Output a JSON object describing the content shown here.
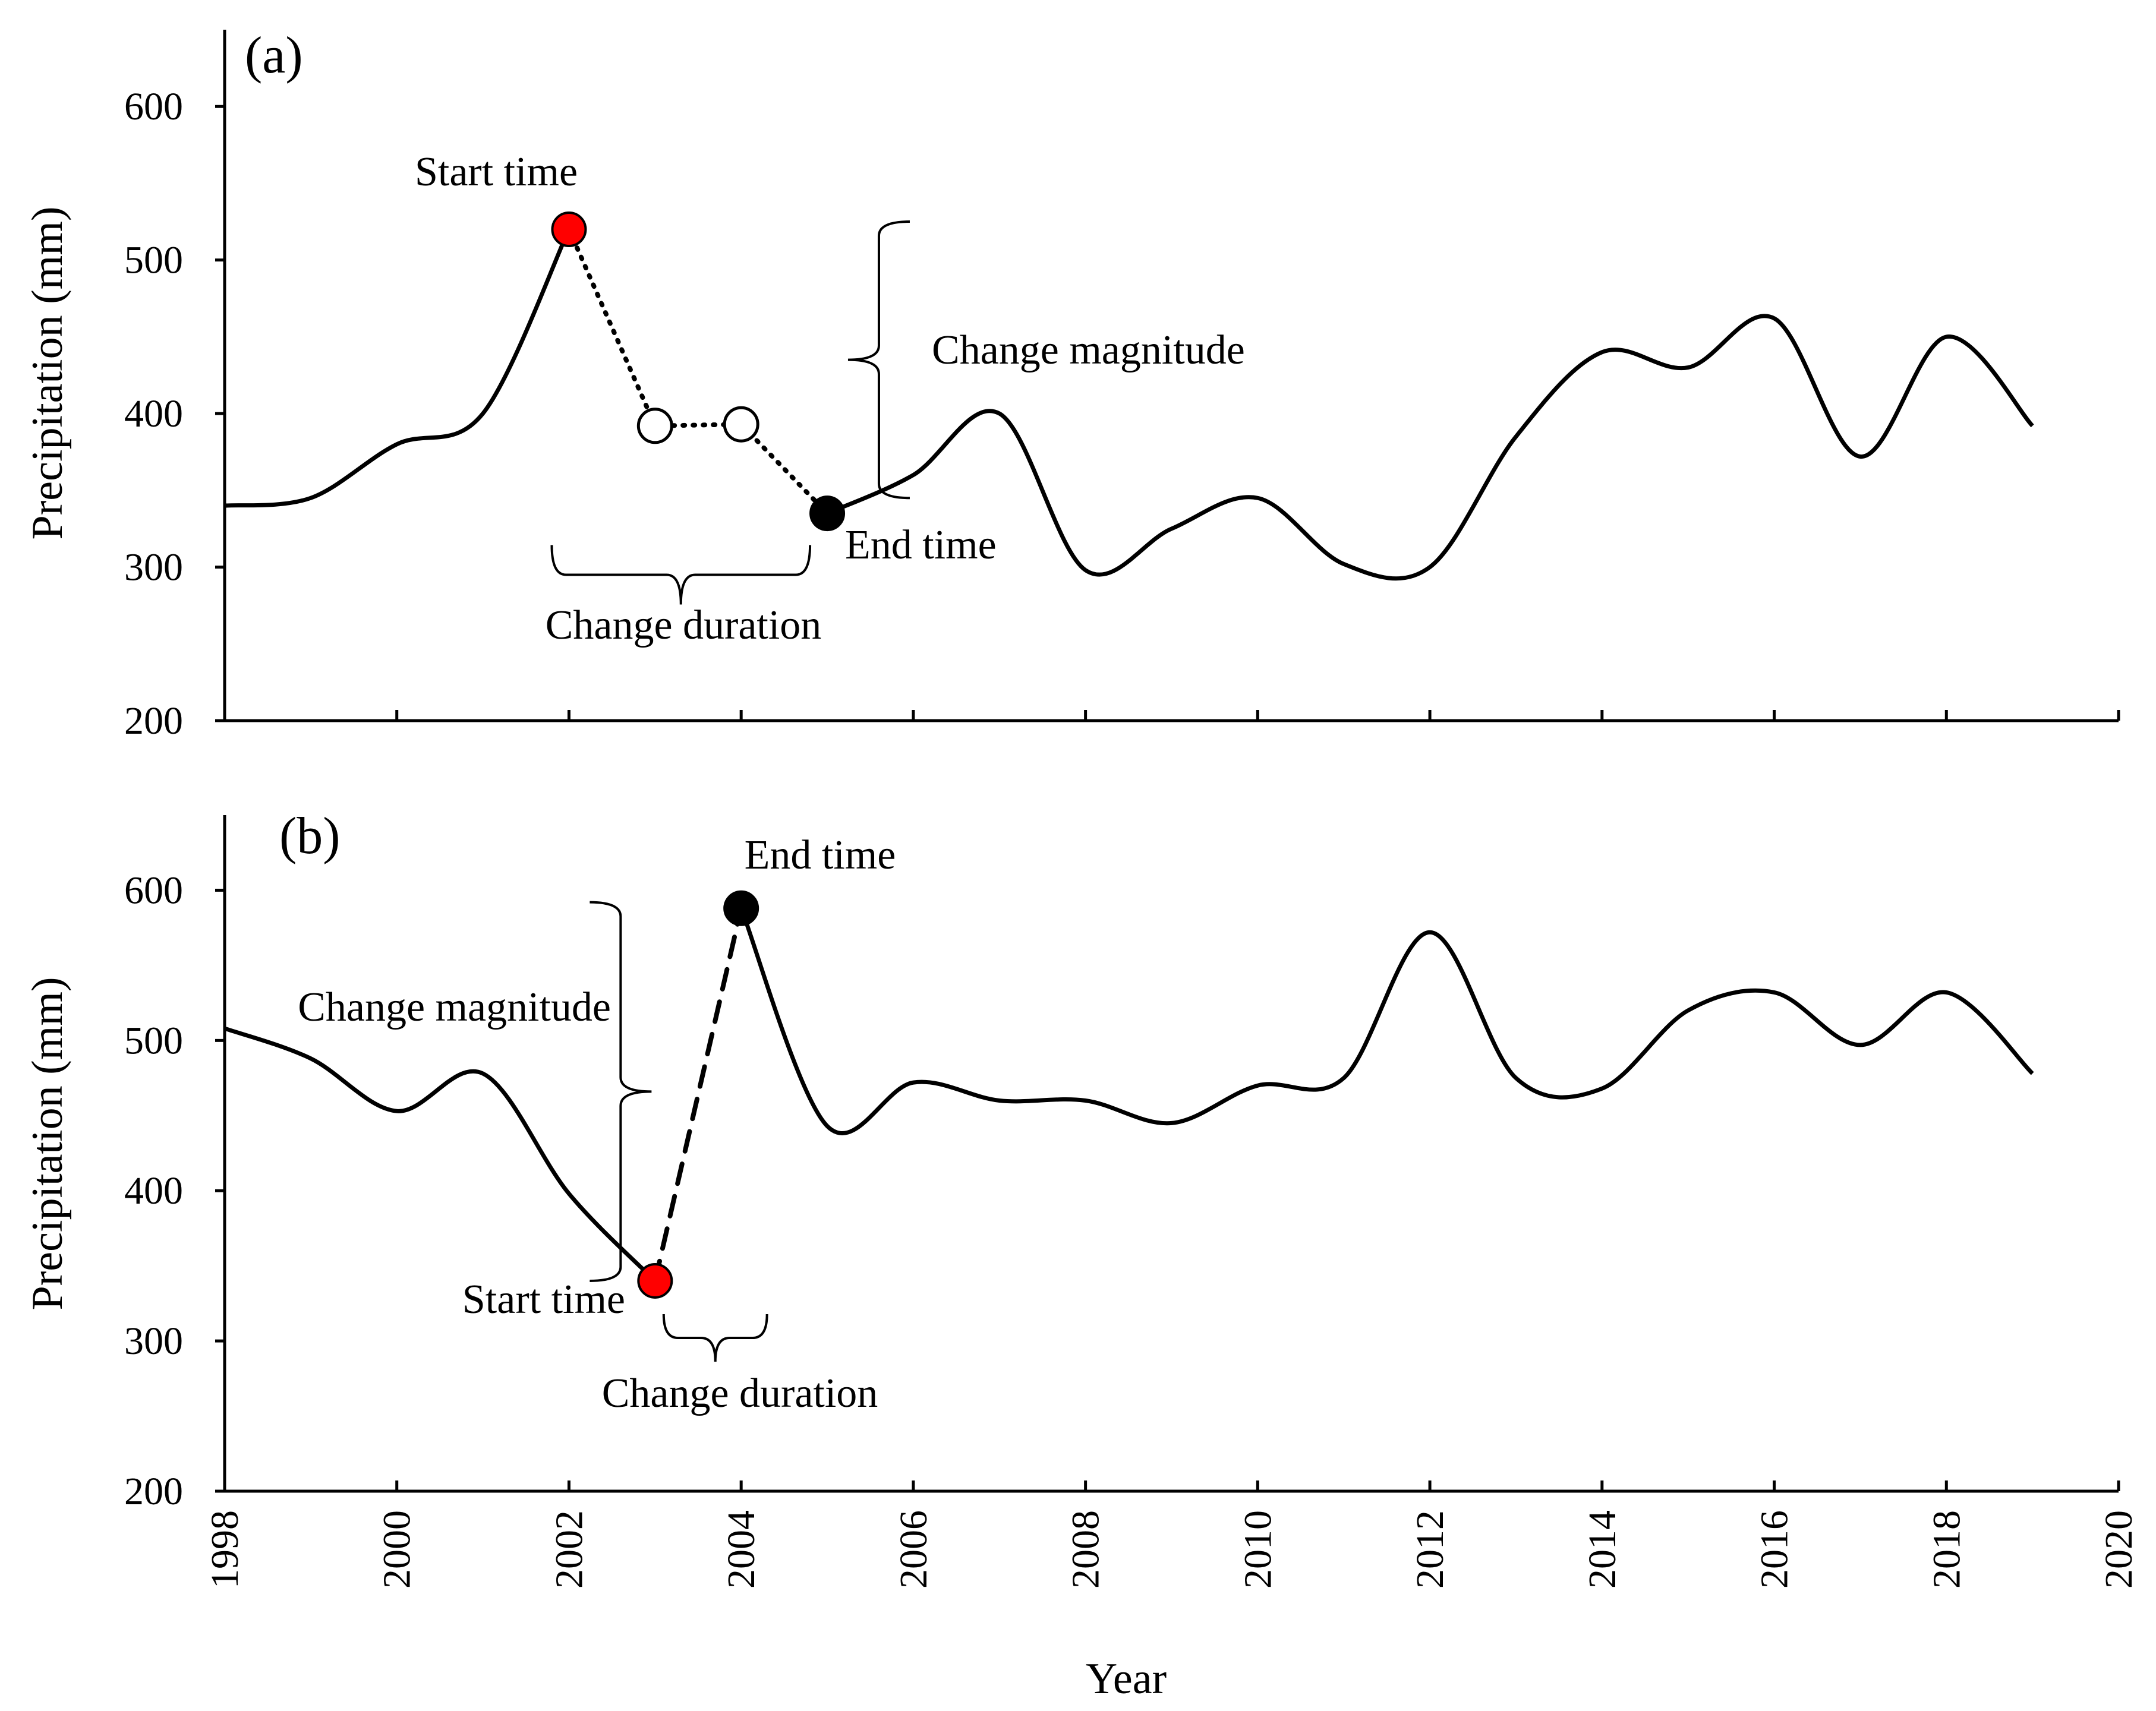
{
  "chart_data": [
    {
      "type": "line",
      "panel_label": "(a)",
      "ylabel": "Precipitation (mm)",
      "xlabel": "",
      "xlim": [
        1998,
        2020
      ],
      "ylim": [
        200,
        650
      ],
      "y_ticks": [
        200,
        300,
        400,
        500,
        600
      ],
      "x_ticks": [
        1998,
        2000,
        2002,
        2004,
        2006,
        2008,
        2010,
        2012,
        2014,
        2016,
        2018,
        2020
      ],
      "x_tick_labels_shown": false,
      "series": [
        {
          "name": "Precipitation",
          "style": "solid",
          "x": [
            1998,
            1999,
            2000,
            2001,
            2002
          ],
          "values": [
            340,
            345,
            380,
            400,
            520
          ]
        },
        {
          "name": "Precipitation",
          "style": "solid",
          "x": [
            2005,
            2006,
            2007,
            2008,
            2009,
            2010,
            2011,
            2012,
            2013,
            2014,
            2015,
            2016,
            2017,
            2018,
            2019
          ],
          "values": [
            335,
            360,
            400,
            298,
            325,
            345,
            302,
            300,
            385,
            440,
            430,
            462,
            372,
            450,
            392
          ]
        },
        {
          "name": "Change segment",
          "style": "dotted",
          "x": [
            2002,
            2003,
            2004,
            2005
          ],
          "values": [
            520,
            392,
            393,
            335
          ]
        }
      ],
      "markers": [
        {
          "role": "start",
          "x": 2002,
          "y": 520,
          "fill": "#ff0000",
          "label": "Start time"
        },
        {
          "role": "intermediate",
          "x": 2003,
          "y": 392,
          "fill": "none"
        },
        {
          "role": "intermediate",
          "x": 2004,
          "y": 393,
          "fill": "none"
        },
        {
          "role": "end",
          "x": 2005,
          "y": 335,
          "fill": "#000000",
          "label": "End time"
        }
      ],
      "annotations": {
        "magnitude": {
          "text": "Change magnitude",
          "y_top": 525,
          "y_bottom": 345,
          "x": 2005.6
        },
        "duration": {
          "text": "Change duration",
          "x_start": 2001.8,
          "x_end": 2004.8,
          "y": 295
        }
      }
    },
    {
      "type": "line",
      "panel_label": "(b)",
      "ylabel": "Precipitation (mm)",
      "xlabel": "Year",
      "xlim": [
        1998,
        2020
      ],
      "ylim": [
        200,
        650
      ],
      "y_ticks": [
        200,
        300,
        400,
        500,
        600
      ],
      "x_ticks": [
        1998,
        2000,
        2002,
        2004,
        2006,
        2008,
        2010,
        2012,
        2014,
        2016,
        2018,
        2020
      ],
      "x_tick_labels_shown": true,
      "series": [
        {
          "name": "Precipitation",
          "style": "solid",
          "x": [
            1998,
            1999,
            2000,
            2001,
            2002,
            2003
          ],
          "values": [
            508,
            488,
            453,
            478,
            398,
            340
          ]
        },
        {
          "name": "Precipitation",
          "style": "solid",
          "x": [
            2004,
            2005,
            2006,
            2007,
            2008,
            2009,
            2010,
            2011,
            2012,
            2013,
            2014,
            2015,
            2016,
            2017,
            2018,
            2019
          ],
          "values": [
            588,
            443,
            472,
            460,
            460,
            445,
            470,
            475,
            572,
            475,
            468,
            520,
            532,
            497,
            532,
            478
          ]
        },
        {
          "name": "Change segment",
          "style": "dashed",
          "x": [
            2003,
            2004
          ],
          "values": [
            340,
            588
          ]
        }
      ],
      "markers": [
        {
          "role": "start",
          "x": 2003,
          "y": 340,
          "fill": "#ff0000",
          "label": "Start time"
        },
        {
          "role": "end",
          "x": 2004,
          "y": 588,
          "fill": "#000000",
          "label": "End time"
        }
      ],
      "annotations": {
        "magnitude": {
          "text": "Change magnitude",
          "y_top": 592,
          "y_bottom": 340,
          "x": 2002.6
        },
        "duration": {
          "text": "Change duration",
          "x_start": 2003.1,
          "x_end": 2004.3,
          "y": 302
        }
      }
    }
  ]
}
